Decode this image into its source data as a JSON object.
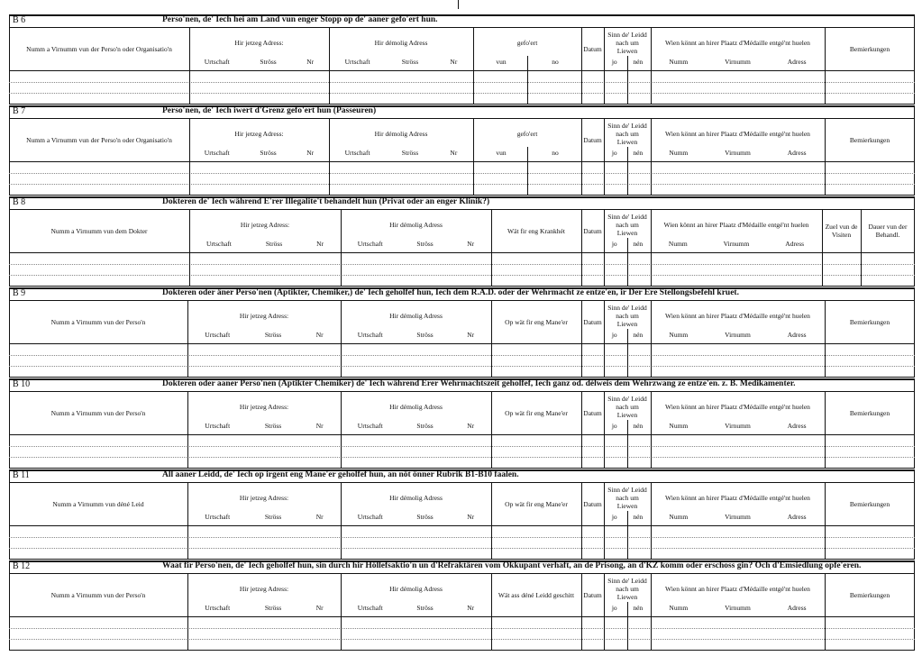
{
  "sections": [
    {
      "code": "B 6",
      "title": "Perso'nen, de' Iech hei am Land vun enger Stopp op de' aaner gefo'ert hun.",
      "columns": [
        {
          "label": "Numm a Virnumm vun der Perso'n oder Organisatio'n"
        },
        {
          "label": "Hir jetzeg Adress:",
          "sub": [
            "Urtschaft",
            "Ströss",
            "Nr"
          ]
        },
        {
          "label": "Hir démolig Adress",
          "sub": [
            "Urtschaft",
            "Ströss",
            "Nr"
          ]
        },
        {
          "label": "gefo'ert",
          "sub": [
            "vun",
            "no"
          ]
        },
        {
          "label": "Datum"
        },
        {
          "label": "Sinn de' Leidd nach um Liewen",
          "sub": [
            "jo",
            "nén"
          ]
        },
        {
          "label": "Wien könnt an hirer Plaatz d'Médaille entgé'nt huelen",
          "sub": [
            "Numm",
            "Virnumm",
            "Adress"
          ]
        },
        {
          "label": "Bemierkungen"
        }
      ]
    },
    {
      "code": "B 7",
      "title": "Perso'nen, de' Iech iwert d'Grenz gefo'ert hun (Passeuren)",
      "columns": [
        {
          "label": "Numm a Virnumm vun der Perso'n oder Organisatio'n"
        },
        {
          "label": "Hir jetzeg Adress:",
          "sub": [
            "Urtschaft",
            "Ströss",
            "Nr"
          ]
        },
        {
          "label": "Hir démolig Adress",
          "sub": [
            "Urtschaft",
            "Ströss",
            "Nr"
          ]
        },
        {
          "label": "gefo'ert",
          "sub": [
            "vun",
            "no"
          ]
        },
        {
          "label": "Datum"
        },
        {
          "label": "Sinn de' Leidd nach um Liewen",
          "sub": [
            "jo",
            "nén"
          ]
        },
        {
          "label": "Wien könnt an hirer Plaatz d'Médaille entgé'nt huelen",
          "sub": [
            "Numm",
            "Virnumm",
            "Adress"
          ]
        },
        {
          "label": "Bemierkungen"
        }
      ]
    },
    {
      "code": "B 8",
      "title": "Dokteren de' Iech während E'rer Illegalite't behandelt hun (Privat oder an enger Klinik?)",
      "columns": [
        {
          "label": "Numm a Virnumm vun dem Dokter"
        },
        {
          "label": "Hir jetzeg Adress:",
          "sub": [
            "Urtschaft",
            "Ströss",
            "Nr"
          ]
        },
        {
          "label": "Hir démolig Adress",
          "sub": [
            "Urtschaft",
            "Ströss",
            "Nr"
          ]
        },
        {
          "label": "Wät fir eng Krankhét"
        },
        {
          "label": "Datum"
        },
        {
          "label": "Sinn de' Leidd nach um Liewen",
          "sub": [
            "jo",
            "nén"
          ]
        },
        {
          "label": "Wien könnt an hirer Plaatz d'Médaille entgé'nt huelen",
          "sub": [
            "Numm",
            "Virnumm",
            "Adress"
          ]
        },
        {
          "label": "Zuel vun de Visiten"
        },
        {
          "label": "Dauer vun der Behandl."
        }
      ]
    },
    {
      "code": "B 9",
      "title": "Dokteren oder äner Perso'nen (Aptikter, Chemiker,) de' Iech geholfef hun, Iech dem R.A.D. oder der Wehrmacht ze entze'en, ir Der Ere Stellongsbefehl kruet.",
      "columns": [
        {
          "label": "Numm a Virnumm vun der Perso'n"
        },
        {
          "label": "Hir jetzeg Adress:",
          "sub": [
            "Urtschaft",
            "Ströss",
            "Nr"
          ]
        },
        {
          "label": "Hir démolig Adress",
          "sub": [
            "Urtschaft",
            "Ströss",
            "Nr"
          ]
        },
        {
          "label": "Op wät fir eng Mane'er"
        },
        {
          "label": "Datum"
        },
        {
          "label": "Sinn de' Leidd nach um Liewen",
          "sub": [
            "jo",
            "nén"
          ]
        },
        {
          "label": "Wien könnt an hirer Plaatz d'Médaille entgé'nt huelen",
          "sub": [
            "Numm",
            "Virnumm",
            "Adress"
          ]
        },
        {
          "label": "Bemierkungen"
        }
      ]
    },
    {
      "code": "B 10",
      "title": "Dokteren oder aaner Perso'nen (Aptikter Chemiker) de' Iech während Erer Wehrmachtszeit geholfef, Iech ganz od. délweis dem Wehrzwang ze entze'en. z. B. Medikamenter.",
      "columns": [
        {
          "label": "Numm a Virnumm vun der Perso'n"
        },
        {
          "label": "Hir jetzeg Adress:",
          "sub": [
            "Urtschaft",
            "Ströss",
            "Nr"
          ]
        },
        {
          "label": "Hir démolig Adress",
          "sub": [
            "Urtschaft",
            "Ströss",
            "Nr"
          ]
        },
        {
          "label": "Op wät fir eng Mane'er"
        },
        {
          "label": "Datum"
        },
        {
          "label": "Sinn de' Leidd nach um Liewen",
          "sub": [
            "jo",
            "nén"
          ]
        },
        {
          "label": "Wien könnt an hirer Plaatz d'Médaille entgé'nt huelen",
          "sub": [
            "Numm",
            "Virnumm",
            "Adress"
          ]
        },
        {
          "label": "Bemierkungen"
        }
      ]
    },
    {
      "code": "B 11",
      "title": "All aaner Leidd, de' Iech op irgent eng Mane'er geholfef hun, an nöt önner Rubrik B1-B10 faalen.",
      "columns": [
        {
          "label": "Numm a Virnumm vun déné Leid"
        },
        {
          "label": "Hir jetzeg Adress:",
          "sub": [
            "Urtschaft",
            "Ströss",
            "Nr"
          ]
        },
        {
          "label": "Hir démolig Adress",
          "sub": [
            "Urtschaft",
            "Ströss",
            "Nr"
          ]
        },
        {
          "label": "Op wät fir eng Mane'er"
        },
        {
          "label": "Datum"
        },
        {
          "label": "Sinn de' Leidd nach um Liewen",
          "sub": [
            "jo",
            "nén"
          ]
        },
        {
          "label": "Wien könnt an hirer Plaatz d'Médaille entgé'nt huelen",
          "sub": [
            "Numm",
            "Virnumm",
            "Adress"
          ]
        },
        {
          "label": "Bemierkungen"
        }
      ]
    },
    {
      "code": "B 12",
      "title": "Waat fir Perso'nen, de' Iech geholfef hun, sin durch hir Höllefsaktio'n un d'Refraktären vom Okkupant verhaft, an de Prisong, an d'KZ komm oder erschoss gin? Och d'Emsiedlung opfe'eren.",
      "columns": [
        {
          "label": "Numm a Virnumm vun der Perso'n"
        },
        {
          "label": "Hir jetzeg Adress:",
          "sub": [
            "Urtschaft",
            "Ströss",
            "Nr"
          ]
        },
        {
          "label": "Hir démolig Adress",
          "sub": [
            "Urtschaft",
            "Ströss",
            "Nr"
          ]
        },
        {
          "label": "Wät ass déné Leidd geschitt"
        },
        {
          "label": "Datum"
        },
        {
          "label": "Sinn de' Leidd nach um Liewen",
          "sub": [
            "jo",
            "nén"
          ]
        },
        {
          "label": "Wien könnt an hirer Plaatz d'Médaille entgé'nt huelen",
          "sub": [
            "Numm",
            "Virnumm",
            "Adress"
          ]
        },
        {
          "label": "Bemierkungen"
        }
      ]
    }
  ]
}
